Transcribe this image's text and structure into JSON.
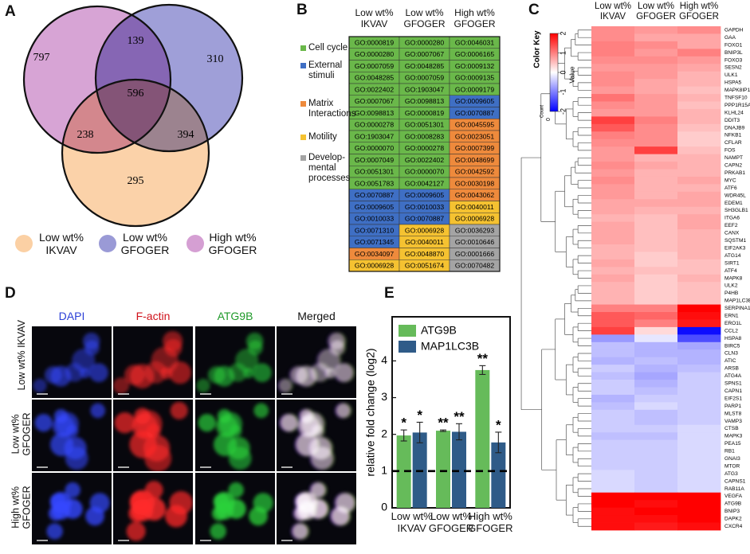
{
  "panel_labels": [
    "A",
    "B",
    "C",
    "D",
    "E"
  ],
  "chart_data": [
    {
      "type": "venn",
      "sets": [
        {
          "name": "Low wt% IKVAV",
          "color": "#fbd0a4"
        },
        {
          "name": "Low wt% GFOGER",
          "color": "#9a9ad6"
        },
        {
          "name": "High wt% GFOGER",
          "color": "#d59fd3"
        }
      ],
      "regions": [
        {
          "sets": [
            2
          ],
          "value": 797
        },
        {
          "sets": [
            1,
            2
          ],
          "value": 139
        },
        {
          "sets": [
            1
          ],
          "value": 310
        },
        {
          "sets": [
            0,
            2
          ],
          "value": 238
        },
        {
          "sets": [
            0,
            1,
            2
          ],
          "value": 596
        },
        {
          "sets": [
            0,
            1
          ],
          "value": 394
        },
        {
          "sets": [
            0
          ],
          "value": 295
        }
      ]
    },
    {
      "type": "heatmap",
      "columns": [
        "Low wt% IKVAV",
        "Low wt% GFOGER",
        "High wt% GFOGER"
      ],
      "rows": [
        "GAPDH",
        "GAA",
        "FOXO1",
        "BNIP3L",
        "FOXO3",
        "SESN2",
        "ULK1",
        "HSPA5",
        "MAPK8IP1",
        "TNFSF10",
        "PPP1R15A",
        "KLHL24",
        "DDIT3",
        "DNAJB9",
        "NFKB1",
        "CFLAR",
        "FOS",
        "NAMPT",
        "CAPN2",
        "PRKAB1",
        "MYC",
        "ATF6",
        "WDR45L",
        "EDEM1",
        "SH3GLB1",
        "ITGA6",
        "EEF2",
        "CANX",
        "SQSTM1",
        "EIF2AK3",
        "ATG14",
        "SIRT1",
        "ATF4",
        "MAPK8",
        "ULK2",
        "P4HB",
        "MAP1LC3B",
        "SERPINA1",
        "ERN1",
        "ERO1L",
        "CCL2",
        "HSPA8",
        "BIRC5",
        "CLN3",
        "ATIC",
        "ARSB",
        "ATG4A",
        "SPNS1",
        "CAPN1",
        "EIF2S1",
        "PARP1",
        "MLST8",
        "VAMP3",
        "CTSB",
        "MAPK3",
        "PEA15",
        "RB1",
        "GNAI3",
        "MTOR",
        "ATG3",
        "CAPNS1",
        "RAB11A",
        "VEGFA",
        "ATG9B",
        "BNIP3",
        "DAPK2",
        "CXCR4"
      ],
      "values": [
        [
          0.9,
          0.8,
          0.9
        ],
        [
          0.9,
          0.7,
          0.7
        ],
        [
          1.0,
          0.9,
          0.7
        ],
        [
          1.0,
          0.8,
          1.0
        ],
        [
          0.9,
          0.9,
          0.8
        ],
        [
          0.8,
          0.8,
          0.7
        ],
        [
          0.9,
          0.8,
          0.6
        ],
        [
          0.9,
          0.7,
          0.6
        ],
        [
          0.8,
          0.7,
          0.5
        ],
        [
          1.1,
          0.8,
          0.6
        ],
        [
          0.9,
          0.8,
          0.5
        ],
        [
          0.8,
          0.8,
          0.6
        ],
        [
          1.5,
          1.0,
          0.6
        ],
        [
          1.3,
          0.9,
          0.5
        ],
        [
          1.0,
          0.9,
          0.4
        ],
        [
          0.9,
          0.9,
          0.4
        ],
        [
          0.8,
          1.5,
          0.5
        ],
        [
          0.8,
          0.6,
          0.6
        ],
        [
          0.9,
          0.7,
          0.6
        ],
        [
          0.8,
          0.6,
          0.6
        ],
        [
          0.9,
          0.6,
          0.7
        ],
        [
          0.8,
          0.6,
          0.6
        ],
        [
          0.8,
          0.6,
          0.7
        ],
        [
          0.7,
          0.7,
          0.7
        ],
        [
          0.7,
          0.6,
          0.6
        ],
        [
          0.6,
          0.5,
          0.7
        ],
        [
          0.7,
          0.5,
          0.7
        ],
        [
          0.7,
          0.5,
          0.6
        ],
        [
          0.7,
          0.5,
          0.6
        ],
        [
          0.6,
          0.5,
          0.6
        ],
        [
          0.6,
          0.4,
          0.6
        ],
        [
          0.7,
          0.4,
          0.5
        ],
        [
          0.6,
          0.5,
          0.5
        ],
        [
          0.7,
          0.4,
          0.6
        ],
        [
          0.6,
          0.4,
          0.5
        ],
        [
          0.6,
          0.4,
          0.5
        ],
        [
          0.6,
          0.4,
          0.5
        ],
        [
          1.0,
          1.0,
          2.0
        ],
        [
          1.3,
          1.2,
          1.9
        ],
        [
          1.3,
          1.0,
          1.8
        ],
        [
          1.5,
          0.3,
          -1.9
        ],
        [
          -0.8,
          -0.2,
          -1.4
        ],
        [
          -0.5,
          -0.6,
          -0.7
        ],
        [
          -0.5,
          -0.6,
          -0.6
        ],
        [
          -0.6,
          -0.5,
          -0.6
        ],
        [
          -0.4,
          -0.6,
          -0.5
        ],
        [
          -0.5,
          -0.7,
          -0.4
        ],
        [
          -0.4,
          -0.6,
          -0.4
        ],
        [
          -0.4,
          -0.5,
          -0.4
        ],
        [
          -0.6,
          -0.4,
          -0.4
        ],
        [
          -0.5,
          -0.3,
          -0.4
        ],
        [
          -0.4,
          -0.5,
          -0.4
        ],
        [
          -0.4,
          -0.5,
          -0.4
        ],
        [
          -0.4,
          -0.4,
          -0.3
        ],
        [
          -0.5,
          -0.5,
          -0.3
        ],
        [
          -0.4,
          -0.4,
          -0.3
        ],
        [
          -0.4,
          -0.4,
          -0.3
        ],
        [
          -0.4,
          -0.4,
          -0.3
        ],
        [
          -0.4,
          -0.4,
          -0.3
        ],
        [
          -0.3,
          -0.4,
          -0.3
        ],
        [
          -0.3,
          -0.4,
          -0.3
        ],
        [
          -0.3,
          -0.4,
          -0.3
        ],
        [
          2.0,
          2.0,
          2.0
        ],
        [
          2.0,
          1.9,
          2.0
        ],
        [
          1.9,
          2.0,
          2.0
        ],
        [
          1.9,
          1.9,
          2.0
        ],
        [
          1.9,
          1.8,
          1.9
        ]
      ],
      "colormap": [
        "#0000ff",
        "#ffffff",
        "#ff0000"
      ],
      "vlim": [
        -2,
        2
      ],
      "colorbar_ticks": [
        -2,
        -1,
        0,
        1,
        2
      ],
      "colorbar_title": "Color Key",
      "colorbar_label": "Value",
      "count_label": "Count",
      "count_ticks": [
        0
      ]
    },
    {
      "type": "bar",
      "categories": [
        "Low wt% IKVAV",
        "Low wt% GFOGER",
        "High wt% GFOGER"
      ],
      "series": [
        {
          "name": "ATG9B",
          "color": "#66bb5a",
          "values": [
            1.97,
            2.1,
            3.75
          ],
          "errors": [
            0.15,
            0.02,
            0.12
          ],
          "labels": [
            "*",
            "**",
            "**"
          ]
        },
        {
          "name": "MAP1LC3B",
          "color": "#2f5b88",
          "values": [
            2.05,
            2.07,
            1.78
          ],
          "errors": [
            0.28,
            0.22,
            0.28
          ],
          "labels": [
            "*",
            "**",
            "*"
          ]
        }
      ],
      "ylabel": "relative fold change (log2)",
      "ylim": [
        0,
        5.2
      ],
      "yticks": [
        0,
        1,
        2,
        3,
        4
      ],
      "hline": 1,
      "legend": "upper left"
    }
  ],
  "table": {
    "columns": [
      "Low wt% IKVAV",
      "Low wt% GFOGER",
      "High wt% GFOGER"
    ],
    "legend": [
      {
        "name": "Cell cycle",
        "color": "#6ab84a"
      },
      {
        "name": "External stimuli",
        "color": "#3f6fc4"
      },
      {
        "name": "Matrix Interactions",
        "color": "#ee8a3c"
      },
      {
        "name": "Motility",
        "color": "#f5c231"
      },
      {
        "name": "Develop­mental processes",
        "color": "#a4a4a4"
      }
    ],
    "rows": [
      [
        {
          "id": "GO:0000819",
          "category": 0
        },
        {
          "id": "GO:0000280",
          "category": 0
        },
        {
          "id": "GO:0046031",
          "category": 0
        }
      ],
      [
        {
          "id": "GO:0000280",
          "category": 0
        },
        {
          "id": "GO:0007067",
          "category": 0
        },
        {
          "id": "GO:0006165",
          "category": 0
        }
      ],
      [
        {
          "id": "GO:0007059",
          "category": 0
        },
        {
          "id": "GO:0048285",
          "category": 0
        },
        {
          "id": "GO:0009132",
          "category": 0
        }
      ],
      [
        {
          "id": "GO:0048285",
          "category": 0
        },
        {
          "id": "GO:0007059",
          "category": 0
        },
        {
          "id": "GO:0009135",
          "category": 0
        }
      ],
      [
        {
          "id": "GO:0022402",
          "category": 0
        },
        {
          "id": "GO:1903047",
          "category": 0
        },
        {
          "id": "GO:0009179",
          "category": 0
        }
      ],
      [
        {
          "id": "GO:0007067",
          "category": 0
        },
        {
          "id": "GO:0098813",
          "category": 0
        },
        {
          "id": "GO:0009605",
          "category": 1
        }
      ],
      [
        {
          "id": "GO:0098813",
          "category": 0
        },
        {
          "id": "GO:0000819",
          "category": 0
        },
        {
          "id": "GO:0070887",
          "category": 1
        }
      ],
      [
        {
          "id": "GO:0000278",
          "category": 0
        },
        {
          "id": "GO:0051301",
          "category": 0
        },
        {
          "id": "GO:0045595",
          "category": 2
        }
      ],
      [
        {
          "id": "GO:1903047",
          "category": 0
        },
        {
          "id": "GO:0008283",
          "category": 0
        },
        {
          "id": "GO:0023051",
          "category": 2
        }
      ],
      [
        {
          "id": "GO:0000070",
          "category": 0
        },
        {
          "id": "GO:0000278",
          "category": 0
        },
        {
          "id": "GO:0007399",
          "category": 2
        }
      ],
      [
        {
          "id": "GO:0007049",
          "category": 0
        },
        {
          "id": "GO:0022402",
          "category": 0
        },
        {
          "id": "GO:0048699",
          "category": 2
        }
      ],
      [
        {
          "id": "GO:0051301",
          "category": 0
        },
        {
          "id": "GO:0000070",
          "category": 0
        },
        {
          "id": "GO:0042592",
          "category": 2
        }
      ],
      [
        {
          "id": "GO:0051783",
          "category": 0
        },
        {
          "id": "GO:0042127",
          "category": 0
        },
        {
          "id": "GO:0030198",
          "category": 2
        }
      ],
      [
        {
          "id": "GO:0070887",
          "category": 1
        },
        {
          "id": "GO:0009605",
          "category": 1
        },
        {
          "id": "GO:0043062",
          "category": 2
        }
      ],
      [
        {
          "id": "GO:0009605",
          "category": 1
        },
        {
          "id": "GO:0010033",
          "category": 1
        },
        {
          "id": "GO:0040011",
          "category": 3
        }
      ],
      [
        {
          "id": "GO:0010033",
          "category": 1
        },
        {
          "id": "GO:0070887",
          "category": 1
        },
        {
          "id": "GO:0006928",
          "category": 3
        }
      ],
      [
        {
          "id": "GO:0071310",
          "category": 1
        },
        {
          "id": "GO:0006928",
          "category": 3
        },
        {
          "id": "GO:0036293",
          "category": 4
        }
      ],
      [
        {
          "id": "GO:0071345",
          "category": 1
        },
        {
          "id": "GO:0040011",
          "category": 3
        },
        {
          "id": "GO:0010646",
          "category": 4
        }
      ],
      [
        {
          "id": "GO:0034097",
          "category": 2
        },
        {
          "id": "GO:0048870",
          "category": 3
        },
        {
          "id": "GO:0001666",
          "category": 4
        }
      ],
      [
        {
          "id": "GO:0006928",
          "category": 3
        },
        {
          "id": "GO:0051674",
          "category": 3
        },
        {
          "id": "GO:0070482",
          "category": 4
        }
      ]
    ]
  },
  "micrographs": {
    "channels": [
      {
        "name": "DAPI",
        "color": "#2b3fd6"
      },
      {
        "name": "F-actin",
        "color": "#d0121b"
      },
      {
        "name": "ATG9B",
        "color": "#1f9a2a"
      },
      {
        "name": "Merged",
        "color": "#111111"
      }
    ],
    "conditions": [
      "Low wt% IKVAV",
      "Low wt% GFOGER",
      "High wt% GFOGER"
    ]
  }
}
